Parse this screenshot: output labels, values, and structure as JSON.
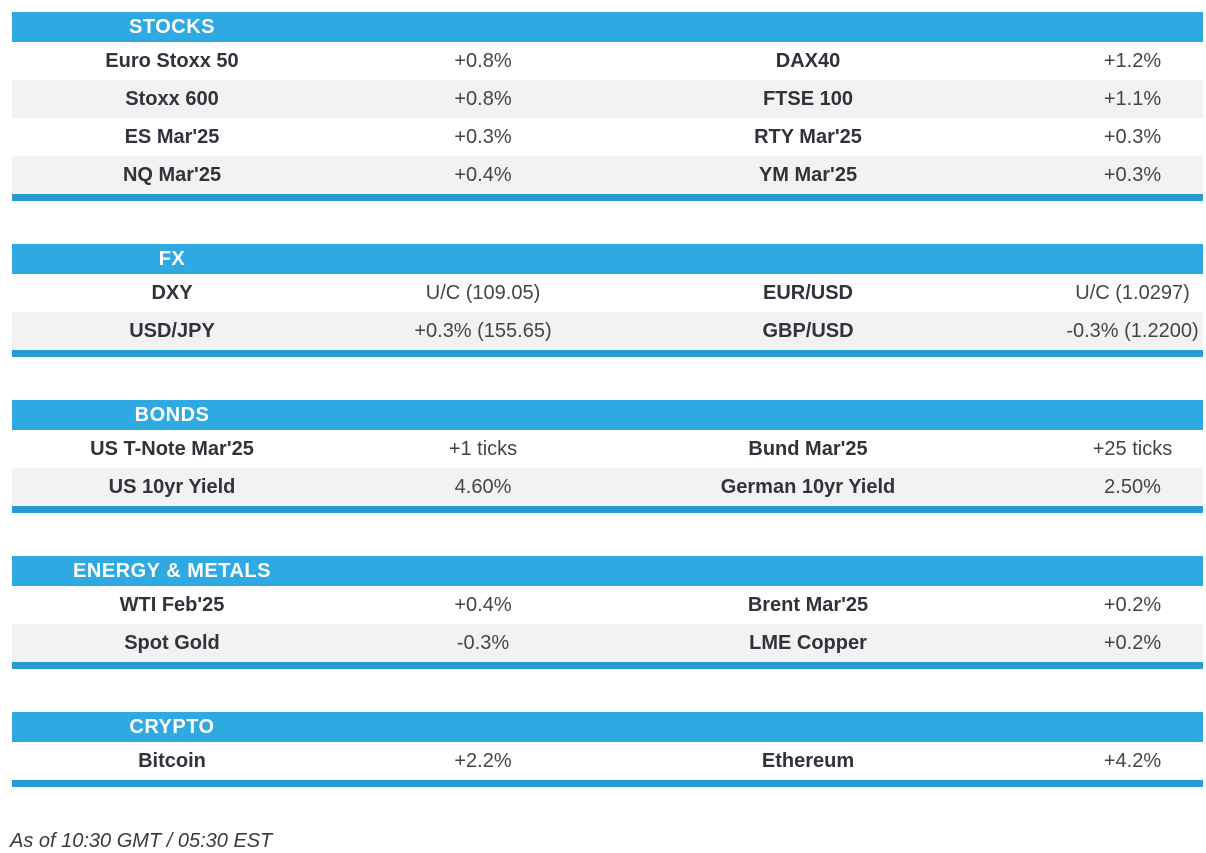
{
  "table": {
    "sections": [
      {
        "title": "STOCKS",
        "rows": [
          {
            "left": {
              "name": "Euro Stoxx 50",
              "value": "+0.8%"
            },
            "right": {
              "name": "DAX40",
              "value": "+1.2%"
            }
          },
          {
            "left": {
              "name": "Stoxx 600",
              "value": "+0.8%"
            },
            "right": {
              "name": "FTSE 100",
              "value": "+1.1%"
            }
          },
          {
            "left": {
              "name": "ES Mar'25",
              "value": "+0.3%"
            },
            "right": {
              "name": "RTY Mar'25",
              "value": "+0.3%"
            }
          },
          {
            "left": {
              "name": "NQ Mar'25",
              "value": "+0.4%"
            },
            "right": {
              "name": "YM Mar'25",
              "value": "+0.3%"
            }
          }
        ]
      },
      {
        "title": "FX",
        "rows": [
          {
            "left": {
              "name": "DXY",
              "value": "U/C (109.05)"
            },
            "right": {
              "name": "EUR/USD",
              "value": "U/C (1.0297)"
            }
          },
          {
            "left": {
              "name": "USD/JPY",
              "value": "+0.3% (155.65)"
            },
            "right": {
              "name": "GBP/USD",
              "value": "-0.3% (1.2200)"
            }
          }
        ]
      },
      {
        "title": "BONDS",
        "rows": [
          {
            "left": {
              "name": "US T-Note Mar'25",
              "value": "+1 ticks"
            },
            "right": {
              "name": "Bund Mar'25",
              "value": "+25 ticks"
            }
          },
          {
            "left": {
              "name": "US 10yr Yield",
              "value": "4.60%"
            },
            "right": {
              "name": "German 10yr Yield",
              "value": "2.50%"
            }
          }
        ]
      },
      {
        "title": "ENERGY & METALS",
        "rows": [
          {
            "left": {
              "name": "WTI Feb'25",
              "value": "+0.4%"
            },
            "right": {
              "name": "Brent Mar'25",
              "value": "+0.2%"
            }
          },
          {
            "left": {
              "name": "Spot Gold",
              "value": "-0.3%"
            },
            "right": {
              "name": "LME Copper",
              "value": "+0.2%"
            }
          }
        ]
      },
      {
        "title": "CRYPTO",
        "rows": [
          {
            "left": {
              "name": "Bitcoin",
              "value": "+2.2%"
            },
            "right": {
              "name": "Ethereum",
              "value": "+4.2%"
            }
          }
        ]
      }
    ]
  },
  "footer": {
    "as_of": "As of 10:30 GMT / 05:30 EST"
  },
  "colors": {
    "header_blue": "#2FA9E2",
    "divider_blue": "#2A9AD4",
    "row_alt": "#F2F2F2",
    "name_text": "#30333B",
    "value_text": "#42454C"
  }
}
